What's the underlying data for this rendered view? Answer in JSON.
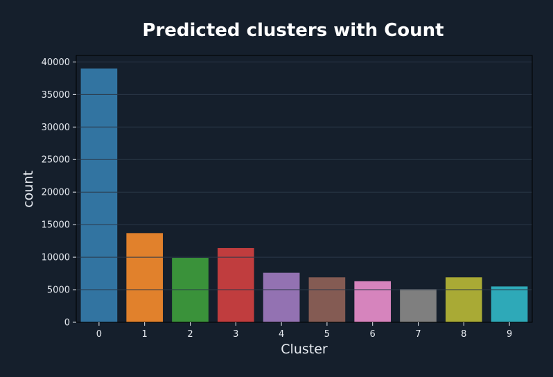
{
  "chart_data": {
    "type": "bar",
    "title": "Predicted clusters with Count",
    "xlabel": "Cluster",
    "ylabel": "count",
    "categories": [
      "0",
      "1",
      "2",
      "3",
      "4",
      "5",
      "6",
      "7",
      "8",
      "9"
    ],
    "values": [
      39000,
      13700,
      9900,
      11400,
      7600,
      6900,
      6300,
      5100,
      6900,
      5500
    ],
    "ylim": [
      0,
      41000
    ],
    "yticks": [
      0,
      5000,
      10000,
      15000,
      20000,
      25000,
      30000,
      35000,
      40000
    ],
    "ytick_labels": [
      "0",
      "5000",
      "10000",
      "15000",
      "20000",
      "25000",
      "30000",
      "35000",
      "40000"
    ],
    "grid": true,
    "colors": [
      "#3274a1",
      "#e1812c",
      "#3a923a",
      "#c03d3e",
      "#9372b2",
      "#845b53",
      "#d684bd",
      "#7f7f7f",
      "#a9aa35",
      "#2ea9b8"
    ],
    "background": "#151f2c",
    "grid_color": "#2b3848"
  }
}
